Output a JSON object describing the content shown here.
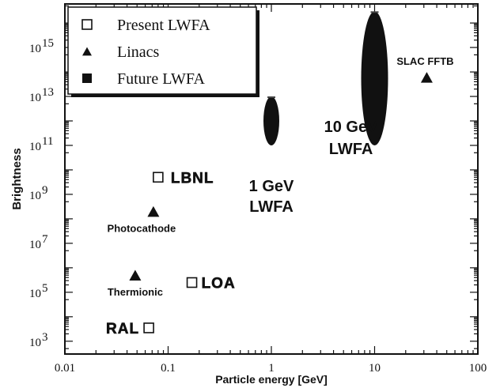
{
  "chart_data": {
    "type": "scatter",
    "title": "",
    "xlabel": "Particle energy [GeV]",
    "ylabel": "Brightness",
    "xscale": "log",
    "yscale": "log",
    "xlim": [
      0.01,
      100
    ],
    "ylim": [
      300,
      60000000000000000
    ],
    "x_ticks": [
      {
        "value": 0.01,
        "label": "0.01"
      },
      {
        "value": 0.1,
        "label": "0.1"
      },
      {
        "value": 1,
        "label": "1"
      },
      {
        "value": 10,
        "label": "10"
      },
      {
        "value": 100,
        "label": "100"
      }
    ],
    "y_ticks": [
      {
        "value": 1000,
        "base": "10",
        "exp": "3"
      },
      {
        "value": 100000,
        "base": "10",
        "exp": "5"
      },
      {
        "value": 10000000,
        "base": "10",
        "exp": "7"
      },
      {
        "value": 1000000000,
        "base": "10",
        "exp": "9"
      },
      {
        "value": 100000000000,
        "base": "10",
        "exp": "11"
      },
      {
        "value": 10000000000000,
        "base": "10",
        "exp": "13"
      },
      {
        "value": 1000000000000000,
        "base": "10",
        "exp": "15"
      }
    ],
    "legend": {
      "position": "top-left",
      "entries": [
        {
          "label": "Present LWFA",
          "marker": "open-square"
        },
        {
          "label": "Linacs",
          "marker": "filled-triangle"
        },
        {
          "label": "Future LWFA",
          "marker": "filled-square"
        }
      ]
    },
    "series": [
      {
        "name": "Present LWFA",
        "marker": "open-square",
        "points": [
          {
            "x": 0.08,
            "y": 5000000000,
            "label": "LBNL"
          },
          {
            "x": 0.17,
            "y": 250000,
            "label": "LOA"
          },
          {
            "x": 0.065,
            "y": 3500,
            "label": "RAL"
          }
        ]
      },
      {
        "name": "Linacs",
        "marker": "filled-triangle",
        "points": [
          {
            "x": 0.072,
            "y": 200000000,
            "label": "Photocathode"
          },
          {
            "x": 0.048,
            "y": 500000,
            "label": "Thermionic"
          },
          {
            "x": 32,
            "y": 60000000000000,
            "label": "SLAC FFTB"
          }
        ]
      },
      {
        "name": "Future LWFA",
        "marker": "filled-ellipse",
        "ranges": [
          {
            "x": 1,
            "y_min": 100000000000,
            "y_max": 10000000000000,
            "label_line1": "1 GeV",
            "label_line2": "LWFA"
          },
          {
            "x": 10,
            "y_min": 100000000000,
            "y_max": 30000000000000000,
            "label_line1": "10 GeV",
            "label_line2": "LWFA"
          }
        ]
      }
    ],
    "grid": false
  },
  "colors": {
    "ink": "#111111",
    "background": "#ffffff"
  }
}
